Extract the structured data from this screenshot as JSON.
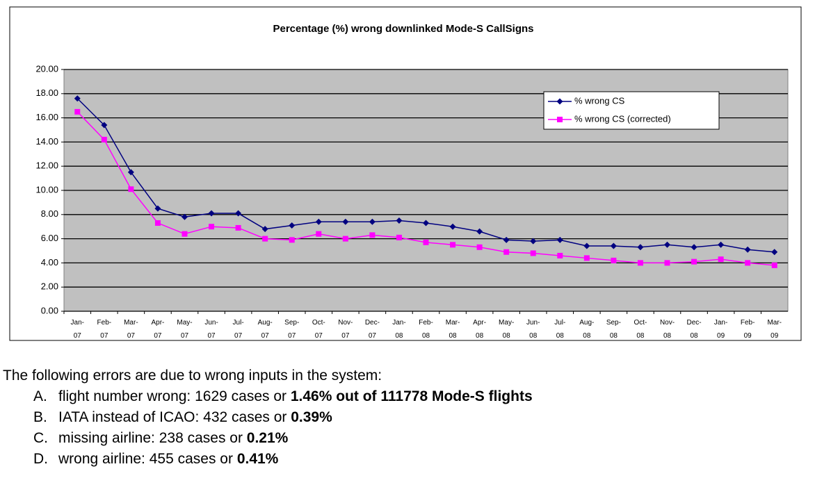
{
  "chart_data": {
    "type": "line",
    "title": "Percentage (%) wrong downlinked Mode-S CallSigns",
    "categories": [
      "Jan-07",
      "Feb-07",
      "Mar-07",
      "Apr-07",
      "May-07",
      "Jun-07",
      "Jul-07",
      "Aug-07",
      "Sep-07",
      "Oct-07",
      "Nov-07",
      "Dec-07",
      "Jan-08",
      "Feb-08",
      "Mar-08",
      "Apr-08",
      "May-08",
      "Jun-08",
      "Jul-08",
      "Aug-08",
      "Sep-08",
      "Oct-08",
      "Nov-08",
      "Dec-08",
      "Jan-09",
      "Feb-09",
      "Mar-09"
    ],
    "series": [
      {
        "name": "% wrong CS",
        "color": "#000080",
        "marker": "diamond",
        "values": [
          17.6,
          15.4,
          11.5,
          8.5,
          7.8,
          8.1,
          8.1,
          6.8,
          7.1,
          7.4,
          7.4,
          7.4,
          7.5,
          7.3,
          7.0,
          6.6,
          5.9,
          5.8,
          5.9,
          5.4,
          5.4,
          5.3,
          5.5,
          5.3,
          5.5,
          5.1,
          4.9
        ]
      },
      {
        "name": "% wrong CS (corrected)",
        "color": "#ff00ff",
        "marker": "square",
        "values": [
          16.5,
          14.2,
          10.1,
          7.3,
          6.4,
          7.0,
          6.9,
          6.0,
          5.9,
          6.4,
          6.0,
          6.3,
          6.1,
          5.7,
          5.5,
          5.3,
          4.9,
          4.8,
          4.6,
          4.4,
          4.2,
          4.0,
          4.0,
          4.1,
          4.3,
          4.0,
          3.8
        ]
      }
    ],
    "ylim": [
      0,
      20
    ],
    "yticks": [
      {
        "value": 0,
        "label": "0.00"
      },
      {
        "value": 2,
        "label": "2.00"
      },
      {
        "value": 4,
        "label": "4.00"
      },
      {
        "value": 6,
        "label": "6.00"
      },
      {
        "value": 8,
        "label": "8.00"
      },
      {
        "value": 10,
        "label": "10.00"
      },
      {
        "value": 12,
        "label": "12.00"
      },
      {
        "value": 14,
        "label": "14.00"
      },
      {
        "value": 16,
        "label": "16.00"
      },
      {
        "value": 18,
        "label": "18.00"
      },
      {
        "value": 20,
        "label": "20.00"
      }
    ],
    "grid": true,
    "plot_background": "#c0c0c0",
    "legend": "upper right"
  },
  "notes": {
    "intro": "The following errors are due to wrong inputs in the system:",
    "items": [
      {
        "marker": "A.",
        "text": "flight number wrong: 1629 cases or ",
        "bold": "1.46% out of 111778 Mode-S flights"
      },
      {
        "marker": "B.",
        "text": "IATA instead of ICAO: 432 cases or ",
        "bold": "0.39%"
      },
      {
        "marker": "C.",
        "text": "missing airline: 238 cases or ",
        "bold": "0.21%"
      },
      {
        "marker": "D.",
        "text": "wrong airline: 455 cases or ",
        "bold": "0.41%"
      }
    ]
  }
}
